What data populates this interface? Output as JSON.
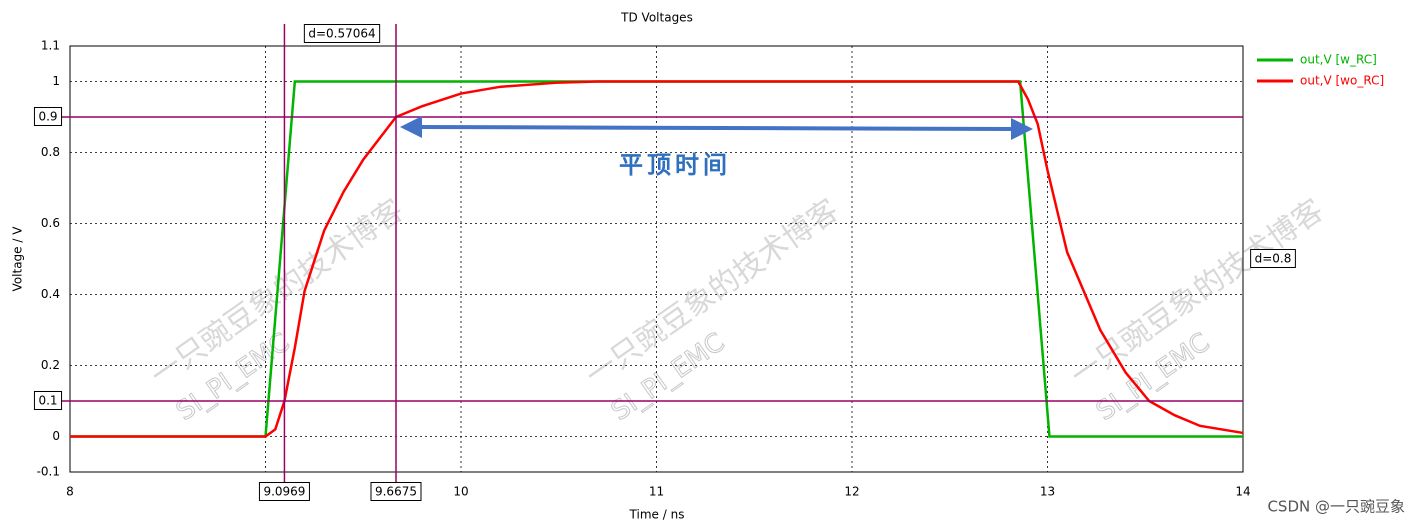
{
  "chart_data": {
    "type": "line",
    "title": "TD Voltages",
    "x_label": "Time / ns",
    "y_label": "Voltage / V",
    "xlim": [
      8,
      14
    ],
    "xticks": [
      8,
      9,
      10,
      11,
      12,
      13,
      14
    ],
    "ylim": [
      -0.1,
      1.1
    ],
    "yticks": [
      -0.1,
      0,
      0.2,
      0.4,
      0.6,
      0.8,
      1,
      1.1
    ],
    "grid": true,
    "legend": "outside-top-right",
    "series": [
      {
        "name": "out,V [w_RC]",
        "color": "#00b400",
        "x": [
          8,
          9,
          9.15,
          12.86,
          13.01,
          14
        ],
        "values": [
          0,
          0,
          1,
          1,
          0,
          0
        ]
      },
      {
        "name": "out,V [wo_RC]",
        "color": "#ff0000",
        "x": [
          8,
          9,
          9.05,
          9.0969,
          9.15,
          9.2,
          9.3,
          9.4,
          9.5,
          9.6675,
          9.8,
          10,
          10.2,
          10.5,
          10.7,
          12.85,
          12.9,
          12.95,
          13,
          13.1,
          13.27,
          13.4,
          13.52,
          13.65,
          13.78,
          14
        ],
        "values": [
          0,
          0,
          0.02,
          0.1,
          0.25,
          0.41,
          0.58,
          0.69,
          0.78,
          0.9,
          0.93,
          0.966,
          0.985,
          0.997,
          1,
          1,
          0.95,
          0.88,
          0.75,
          0.52,
          0.3,
          0.18,
          0.1,
          0.06,
          0.03,
          0.01
        ]
      }
    ],
    "x_markers": [
      9.0969,
      9.6675
    ],
    "x_delta_label": "d=0.57064",
    "y_markers": [
      0.9,
      0.1
    ],
    "y_delta_label": "d=0.8",
    "annotation": "平顶时间",
    "watermark": "一只豌豆象的技术博客",
    "watermark_sub": "SI_PI_EMC",
    "credit": "CSDN @一只豌豆象"
  }
}
